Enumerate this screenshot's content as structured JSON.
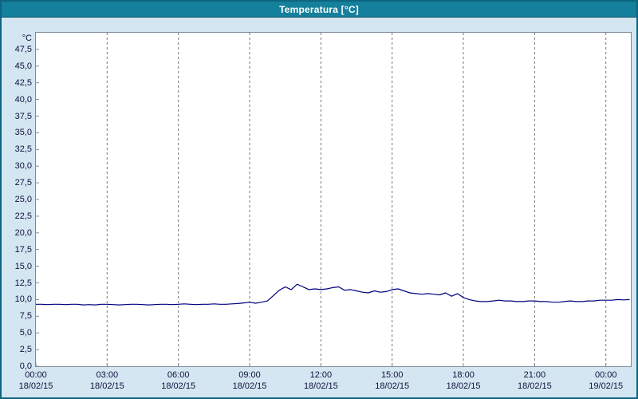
{
  "window": {
    "title": "Temperatura [°C]"
  },
  "colors": {
    "titlebar": "#14809b",
    "window_border": "#0d657f",
    "body_bg": "#d4e6f1",
    "plot_bg": "#ffffff",
    "plot_border": "#7e8a96",
    "grid": "#777777",
    "line": "#00007f",
    "axis_text": "#10103c",
    "title_text": "#ffffff"
  },
  "chart_data": {
    "type": "line",
    "title": "Temperatura [°C]",
    "xlabel": "",
    "ylabel": "°C",
    "grid": "vertical-dashed",
    "legend": "none",
    "y_axis": {
      "unit": "°C",
      "min": 0,
      "max": 50,
      "tick_values": [
        0,
        2.5,
        5,
        7.5,
        10,
        12.5,
        15,
        17.5,
        20,
        22.5,
        25,
        27.5,
        30,
        32.5,
        35,
        37.5,
        40,
        42.5,
        45,
        47.5
      ],
      "tick_labels": [
        "0,0",
        "2,5",
        "5,0",
        "7,5",
        "10,0",
        "12,5",
        "15,0",
        "17,5",
        "20,0",
        "22,5",
        "25,0",
        "27,5",
        "30,0",
        "32,5",
        "35,0",
        "37,5",
        "40,0",
        "42,5",
        "45,0",
        "47,5"
      ]
    },
    "x_axis": {
      "max_hours": 25.05,
      "tick_hours": [
        0,
        3,
        6,
        9,
        12,
        15,
        18,
        21,
        24
      ],
      "tick_times": [
        "00:00",
        "03:00",
        "06:00",
        "09:00",
        "12:00",
        "15:00",
        "18:00",
        "21:00",
        "00:00"
      ],
      "tick_dates": [
        "18/02/15",
        "18/02/15",
        "18/02/15",
        "18/02/15",
        "18/02/15",
        "18/02/15",
        "18/02/15",
        "18/02/15",
        "19/02/15"
      ]
    },
    "series": [
      {
        "name": "Temperatura [°C]",
        "color": "#00007f",
        "start_hour": 0,
        "step_hours": 0.25,
        "values": [
          9.3,
          9.3,
          9.25,
          9.3,
          9.3,
          9.25,
          9.3,
          9.3,
          9.2,
          9.25,
          9.2,
          9.3,
          9.3,
          9.25,
          9.2,
          9.25,
          9.3,
          9.3,
          9.25,
          9.2,
          9.25,
          9.3,
          9.3,
          9.25,
          9.3,
          9.35,
          9.3,
          9.25,
          9.3,
          9.3,
          9.35,
          9.3,
          9.3,
          9.35,
          9.4,
          9.5,
          9.6,
          9.45,
          9.6,
          9.8,
          10.6,
          11.4,
          11.9,
          11.5,
          12.3,
          11.9,
          11.5,
          11.6,
          11.5,
          11.6,
          11.8,
          11.9,
          11.4,
          11.5,
          11.3,
          11.1,
          11.0,
          11.3,
          11.1,
          11.2,
          11.5,
          11.6,
          11.3,
          11.0,
          10.9,
          10.8,
          10.9,
          10.8,
          10.7,
          11.0,
          10.5,
          10.9,
          10.3,
          10.0,
          9.8,
          9.7,
          9.7,
          9.8,
          9.9,
          9.8,
          9.8,
          9.7,
          9.7,
          9.8,
          9.8,
          9.7,
          9.7,
          9.6,
          9.6,
          9.7,
          9.8,
          9.7,
          9.7,
          9.8,
          9.8,
          9.9,
          9.9,
          9.9,
          10.0,
          9.95,
          10.0
        ]
      }
    ]
  }
}
